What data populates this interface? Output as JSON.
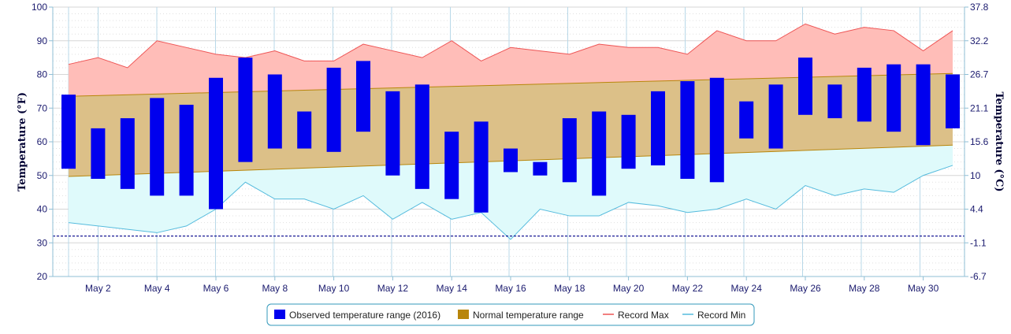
{
  "chart_data": {
    "type": "bar",
    "days": [
      1,
      2,
      3,
      4,
      5,
      6,
      7,
      8,
      9,
      10,
      11,
      12,
      13,
      14,
      15,
      16,
      17,
      18,
      19,
      20,
      21,
      22,
      23,
      24,
      25,
      26,
      27,
      28,
      29,
      30,
      31
    ],
    "x_tick_labels": [
      {
        "day": 2,
        "label": "May 2"
      },
      {
        "day": 4,
        "label": "May 4"
      },
      {
        "day": 6,
        "label": "May 6"
      },
      {
        "day": 8,
        "label": "May 8"
      },
      {
        "day": 10,
        "label": "May 10"
      },
      {
        "day": 12,
        "label": "May 12"
      },
      {
        "day": 14,
        "label": "May 14"
      },
      {
        "day": 16,
        "label": "May 16"
      },
      {
        "day": 18,
        "label": "May 18"
      },
      {
        "day": 20,
        "label": "May 20"
      },
      {
        "day": 22,
        "label": "May 22"
      },
      {
        "day": 24,
        "label": "May 24"
      },
      {
        "day": 26,
        "label": "May 26"
      },
      {
        "day": 28,
        "label": "May 28"
      },
      {
        "day": 30,
        "label": "May 30"
      }
    ],
    "ylabel": "Temperature (°F)",
    "y2label": "Temperature (°C)",
    "ylim": [
      20,
      100
    ],
    "y_ticks": [
      "20",
      "30",
      "40",
      "50",
      "60",
      "70",
      "80",
      "90",
      "100"
    ],
    "y2_ticks": [
      "-6.7",
      "-1.1",
      "4.4",
      "10",
      "15.6",
      "21.1",
      "26.7",
      "32.2",
      "37.8"
    ],
    "freezing_line_f": 32,
    "series": [
      {
        "name": "Observed temperature range (2016)",
        "color": "#0000ee",
        "low": [
          52,
          49,
          46,
          44,
          44,
          40,
          54,
          58,
          58,
          57,
          63,
          50,
          46,
          43,
          39,
          51,
          50,
          48,
          44,
          52,
          53,
          49,
          48,
          61,
          58,
          68,
          67,
          66,
          63,
          59,
          64
        ],
        "high": [
          74,
          64,
          67,
          73,
          71,
          79,
          85,
          80,
          69,
          82,
          84,
          75,
          77,
          63,
          66,
          58,
          54,
          67,
          69,
          68,
          75,
          78,
          79,
          72,
          77,
          85,
          77,
          82,
          83,
          83,
          80
        ]
      },
      {
        "name": "Normal temperature range",
        "color": "#b8860b",
        "low_start": 49.7,
        "low_end": 59.0,
        "high_start": 73.5,
        "high_end": 80.3
      },
      {
        "name": "Record Max",
        "color": "#ee5555",
        "values": [
          83,
          85,
          82,
          90,
          88,
          86,
          85,
          87,
          84,
          84,
          89,
          87,
          85,
          90,
          84,
          88,
          87,
          86,
          89,
          88,
          88,
          86,
          93,
          90,
          90,
          95,
          92,
          94,
          93,
          87,
          93
        ]
      },
      {
        "name": "Record Min",
        "color": "#55bbdd",
        "values": [
          36,
          35,
          34,
          33,
          35,
          40,
          48,
          43,
          43,
          40,
          44,
          37,
          42,
          37,
          39,
          31,
          40,
          38,
          38,
          42,
          41,
          39,
          40,
          43,
          40,
          47,
          44,
          46,
          45,
          50,
          53
        ]
      }
    ],
    "legend": [
      {
        "label": "Observed temperature range (2016)",
        "kind": "box",
        "color": "#0000ee"
      },
      {
        "label": "Normal temperature range",
        "kind": "box",
        "color": "#b8860b"
      },
      {
        "label": "Record Max",
        "kind": "line",
        "color": "#ee5555"
      },
      {
        "label": "Record Min",
        "kind": "line",
        "color": "#55bbdd"
      }
    ],
    "legend_position": "bottom-center",
    "grid": true
  }
}
